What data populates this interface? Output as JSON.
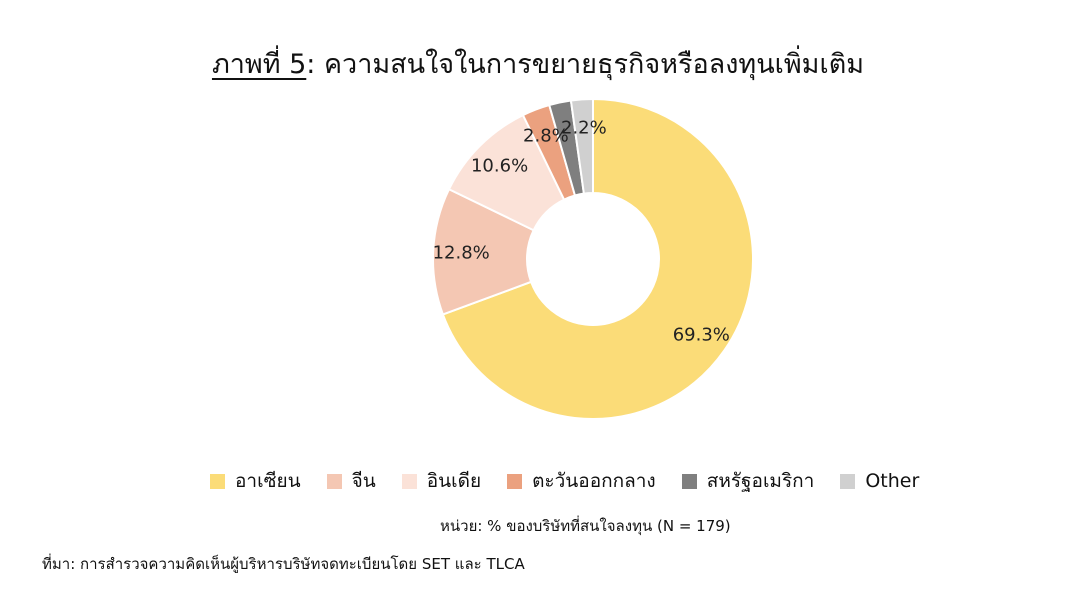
{
  "figure_label": "ภาพที่ 5",
  "title_separator": ":",
  "title_text": " ความสนใจในการขยายธุรกิจหรือลงทุนเพิ่มเติม",
  "unit_note": "หน่วย:  % ของบริษัทที่สนใจลงทุน (N = 179)",
  "source_note": "ที่มา: การสำรวจความคิดเห็นผู้บริหารบริษัทจดทะเบียนโดย SET และ TLCA",
  "chart_data": {
    "type": "pie",
    "variant": "donut",
    "start": "top",
    "direction": "clockwise",
    "legend_position": "bottom",
    "categories": [
      "อาเซียน",
      "จีน",
      "อินเดีย",
      "ตะวันออกกลาง",
      "สหรัฐอเมริกา",
      "Other"
    ],
    "values": [
      69.3,
      12.8,
      10.6,
      2.8,
      2.2,
      2.2
    ],
    "labels": [
      "69.3%",
      "12.8%",
      "10.6%",
      "2.8%",
      "2.2%",
      "2.2%"
    ],
    "colors": [
      "#fbdc78",
      "#f4c7b3",
      "#fbe2d8",
      "#eba17f",
      "#7f7f7f",
      "#d0d0d0"
    ],
    "show_label": [
      true,
      true,
      true,
      true,
      false,
      true
    ]
  }
}
